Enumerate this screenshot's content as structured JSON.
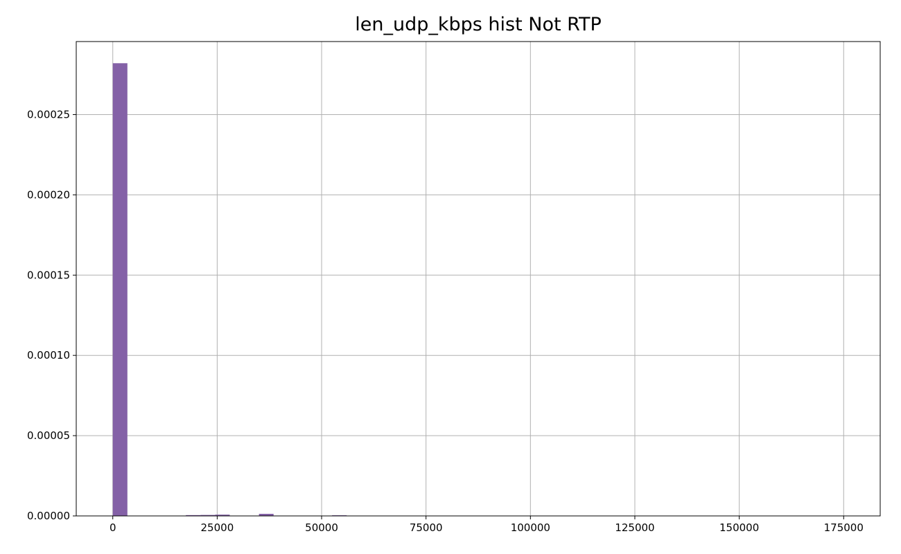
{
  "chart_data": {
    "type": "bar",
    "title": "len_udp_kbps hist Not RTP",
    "xlabel": "",
    "ylabel": "",
    "xlim": [
      -8750,
      183750
    ],
    "ylim": [
      0,
      0.0002955
    ],
    "grid": true,
    "bar_color": "#8461a7",
    "bin_width": 3500,
    "bins": [
      {
        "x0": 0,
        "x1": 3500,
        "value": 0.000282
      },
      {
        "x0": 17500,
        "x1": 21000,
        "value": 5e-07
      },
      {
        "x0": 21000,
        "x1": 24500,
        "value": 6e-07
      },
      {
        "x0": 24500,
        "x1": 28000,
        "value": 8e-07
      },
      {
        "x0": 35000,
        "x1": 38500,
        "value": 1.3e-06
      },
      {
        "x0": 52500,
        "x1": 56000,
        "value": 4e-07
      }
    ],
    "x_ticks": [
      0,
      25000,
      50000,
      75000,
      100000,
      125000,
      150000,
      175000
    ],
    "x_tick_labels": [
      "0",
      "25000",
      "50000",
      "75000",
      "100000",
      "125000",
      "150000",
      "175000"
    ],
    "y_ticks": [
      0,
      5e-05,
      0.0001,
      0.00015,
      0.0002,
      0.00025
    ],
    "y_tick_labels": [
      "0.00000",
      "0.00005",
      "0.00010",
      "0.00015",
      "0.00020",
      "0.00025"
    ]
  }
}
